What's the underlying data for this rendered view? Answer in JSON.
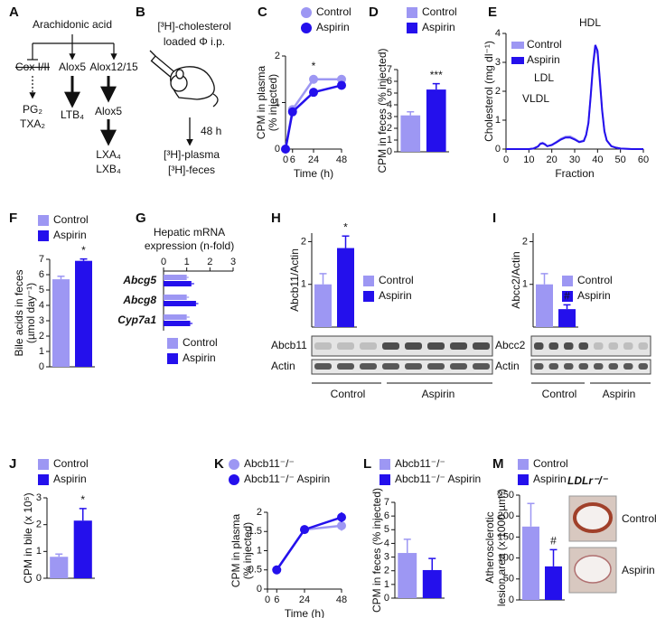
{
  "diagram_a": {
    "label": "A",
    "source": "Arachidonic acid",
    "enzymes": [
      "Cox I/II",
      "Alox5",
      "Alox12/15"
    ],
    "products": [
      "PG₂",
      "TXA₂",
      "LTB₄",
      "Alox5",
      "LXA₄",
      "LXB₄"
    ]
  },
  "diagram_b": {
    "label": "B",
    "steps": [
      "[³H]-cholesterol",
      "loaded Φ i.p.",
      "48 h",
      "[³H]-plasma",
      "[³H]-feces"
    ]
  },
  "blots": [
    {
      "rows": [
        "Abcb11",
        "Actin"
      ],
      "groups": [
        "Control",
        "Aspirin"
      ]
    },
    {
      "rows": [
        "Abcc2",
        "Actin"
      ],
      "groups": [
        "Control",
        "Aspirin"
      ]
    }
  ],
  "histology": {
    "title": "LDLr⁻/⁻",
    "labels": [
      "Control",
      "Aspirin"
    ]
  },
  "chart_data": [
    {
      "label": "C",
      "type": "line",
      "markers": true,
      "x": [
        0,
        6,
        24,
        48
      ],
      "series": [
        {
          "name": "Control",
          "color": "#9d97f3",
          "values": [
            0,
            0.85,
            1.5,
            1.5
          ]
        },
        {
          "name": "Aspirin",
          "color": "#2410ec",
          "values": [
            0,
            0.8,
            1.22,
            1.37
          ]
        }
      ],
      "xlim": [
        0,
        48
      ],
      "xticks": [
        0,
        6,
        24,
        48
      ],
      "ylim": [
        0,
        2
      ],
      "yticks": [
        0,
        1,
        2
      ],
      "xlabel": "Time (h)",
      "ylabel": [
        "CPM in plasma",
        "(% injected)"
      ],
      "annotations": [
        "*"
      ]
    },
    {
      "label": "D",
      "type": "bar",
      "series": [
        {
          "name": "Control",
          "color": "#9d97f3",
          "values": [
            3.1
          ],
          "errors": [
            0.3
          ]
        },
        {
          "name": "Aspirin",
          "color": "#2410ec",
          "values": [
            5.3
          ],
          "errors": [
            0.5
          ]
        }
      ],
      "ylim": [
        0,
        7
      ],
      "yticks": [
        0,
        1,
        2,
        3,
        4,
        5,
        6,
        7
      ],
      "ylabel": [
        "CPM in feces (% injected)"
      ],
      "annotations": [
        "***"
      ]
    },
    {
      "label": "E",
      "type": "line",
      "markers": false,
      "x": [
        0,
        5,
        10,
        12,
        14,
        15,
        16,
        17,
        18,
        20,
        22,
        24,
        26,
        28,
        30,
        32,
        34,
        35,
        36,
        37,
        38,
        39,
        40,
        41,
        42,
        43,
        44,
        46,
        48,
        50,
        55,
        60
      ],
      "series": [
        {
          "name": "Control",
          "color": "#9d97f3",
          "values": [
            0,
            0,
            0,
            0.02,
            0.1,
            0.2,
            0.22,
            0.18,
            0.1,
            0.15,
            0.25,
            0.36,
            0.43,
            0.44,
            0.36,
            0.26,
            0.3,
            0.5,
            0.9,
            1.8,
            2.8,
            3.45,
            3.3,
            2.3,
            1.3,
            0.6,
            0.3,
            0.1,
            0.05,
            0.02,
            0,
            0
          ]
        },
        {
          "name": "Aspirin",
          "color": "#2410ec",
          "values": [
            0,
            0,
            0,
            0.02,
            0.09,
            0.18,
            0.2,
            0.16,
            0.1,
            0.14,
            0.23,
            0.33,
            0.4,
            0.4,
            0.33,
            0.24,
            0.28,
            0.48,
            0.9,
            1.85,
            2.9,
            3.6,
            3.4,
            2.4,
            1.35,
            0.62,
            0.3,
            0.1,
            0.05,
            0.02,
            0,
            0
          ]
        }
      ],
      "xlim": [
        0,
        60
      ],
      "xticks": [
        0,
        10,
        20,
        30,
        40,
        50,
        60
      ],
      "ylim": [
        0,
        4
      ],
      "yticks": [
        0,
        1,
        2,
        3,
        4
      ],
      "xlabel": "Fraction",
      "ylabel": [
        "Cholesterol (mg dl⁻¹)"
      ],
      "annotations": [
        "VLDL",
        "LDL",
        "HDL"
      ]
    },
    {
      "label": "F",
      "type": "bar",
      "series": [
        {
          "name": "Control",
          "color": "#9d97f3",
          "values": [
            5.7
          ],
          "errors": [
            0.2
          ]
        },
        {
          "name": "Aspirin",
          "color": "#2410ec",
          "values": [
            6.9
          ],
          "errors": [
            0.12
          ]
        }
      ],
      "ylim": [
        0,
        7
      ],
      "yticks": [
        0,
        1,
        2,
        3,
        4,
        5,
        6,
        7
      ],
      "ylabel": [
        "Bile acids in feces",
        "(µmol day⁻¹)"
      ],
      "annotations": [
        "*"
      ]
    },
    {
      "label": "G",
      "type": "barh",
      "title": [
        "Hepatic mRNA",
        "expression (n-fold)"
      ],
      "categories": [
        "Abcg5",
        "Abcg8",
        "Cyp7a1"
      ],
      "series": [
        {
          "name": "Control",
          "color": "#9d97f3",
          "values": [
            1.0,
            1.0,
            1.0
          ],
          "errors": [
            0.08,
            0.1,
            0.12
          ]
        },
        {
          "name": "Aspirin",
          "color": "#2410ec",
          "values": [
            1.2,
            1.4,
            1.15
          ],
          "errors": [
            0.12,
            0.1,
            0.1
          ]
        }
      ],
      "xlim": [
        0,
        3
      ],
      "xticks": [
        0,
        1,
        2,
        3
      ]
    },
    {
      "label": "H",
      "type": "bar",
      "series": [
        {
          "name": "Control",
          "color": "#9d97f3",
          "values": [
            1.0
          ],
          "errors": [
            0.25
          ]
        },
        {
          "name": "Aspirin",
          "color": "#2410ec",
          "values": [
            1.85
          ],
          "errors": [
            0.28
          ]
        }
      ],
      "ylim": [
        0,
        2.2
      ],
      "yticks": [
        1,
        2
      ],
      "ylabel": [
        "Abcb11/Actin"
      ],
      "annotations": [
        "*"
      ]
    },
    {
      "label": "I",
      "type": "bar",
      "series": [
        {
          "name": "Control",
          "color": "#9d97f3",
          "values": [
            1.0
          ],
          "errors": [
            0.25
          ]
        },
        {
          "name": "Aspirin",
          "color": "#2410ec",
          "values": [
            0.42
          ],
          "errors": [
            0.1
          ]
        }
      ],
      "ylim": [
        0,
        2.2
      ],
      "yticks": [
        1,
        2
      ],
      "ylabel": [
        "Abcc2/Actin"
      ],
      "annotations": [
        "#"
      ]
    },
    {
      "label": "J",
      "type": "bar",
      "series": [
        {
          "name": "Control",
          "color": "#9d97f3",
          "values": [
            0.8
          ],
          "errors": [
            0.1
          ]
        },
        {
          "name": "Aspirin",
          "color": "#2410ec",
          "values": [
            2.15
          ],
          "errors": [
            0.45
          ]
        }
      ],
      "ylim": [
        0,
        3
      ],
      "yticks": [
        0,
        1,
        2,
        3
      ],
      "ylabel": [
        "CPM in bile (x 10⁵)"
      ],
      "annotations": [
        "*"
      ]
    },
    {
      "label": "K",
      "type": "line",
      "markers": true,
      "x": [
        6,
        24,
        48
      ],
      "series": [
        {
          "name": "Abcb11⁻/⁻",
          "color": "#9d97f3",
          "values": [
            0.5,
            1.55,
            1.65
          ],
          "errors": [
            null,
            null,
            0.13
          ]
        },
        {
          "name": "Abcb11⁻/⁻ Aspirin",
          "color": "#2410ec",
          "values": [
            0.5,
            1.55,
            1.87
          ],
          "errors": [
            null,
            null,
            0.13
          ]
        }
      ],
      "xlim": [
        0,
        48
      ],
      "xticks": [
        0,
        6,
        24,
        48
      ],
      "ylim": [
        0,
        2
      ],
      "yticks": [
        0,
        0.5,
        1,
        1.5,
        2
      ],
      "xlabel": "Time (h)",
      "ylabel": [
        "CPM in plasma",
        "(% injected)"
      ]
    },
    {
      "label": "L",
      "type": "bar",
      "series": [
        {
          "name": "Abcb11⁻/⁻",
          "color": "#9d97f3",
          "values": [
            3.3
          ],
          "errors": [
            1.0
          ]
        },
        {
          "name": "Abcb11⁻/⁻ Aspirin",
          "color": "#2410ec",
          "values": [
            2.05
          ],
          "errors": [
            0.85
          ]
        }
      ],
      "ylim": [
        0,
        7
      ],
      "yticks": [
        0,
        1,
        2,
        3,
        4,
        5,
        6,
        7
      ],
      "ylabel": [
        "CPM in feces (% injected)"
      ]
    },
    {
      "label": "M",
      "type": "bar",
      "series": [
        {
          "name": "Control",
          "color": "#9d97f3",
          "values": [
            175
          ],
          "errors": [
            55
          ]
        },
        {
          "name": "Aspirin",
          "color": "#2410ec",
          "values": [
            80
          ],
          "errors": [
            40
          ]
        }
      ],
      "ylim": [
        0,
        250
      ],
      "yticks": [
        0,
        50,
        100,
        150,
        200,
        250
      ],
      "ylabel": [
        "Atherosclerotic",
        "lesion area (x 1000 µm²)"
      ],
      "annotations": [
        "#"
      ]
    }
  ]
}
